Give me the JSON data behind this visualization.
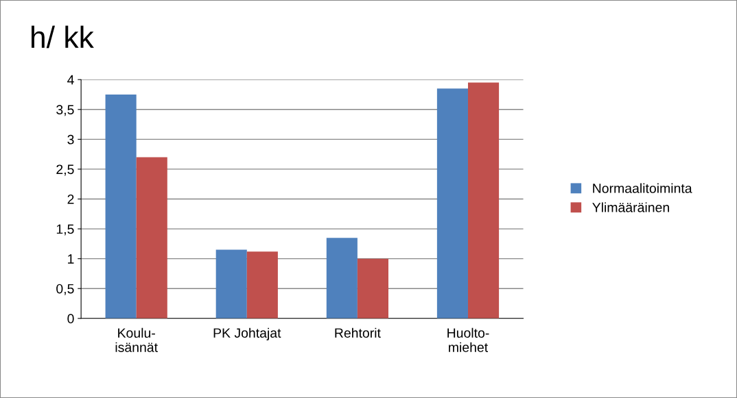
{
  "chart_data": {
    "type": "bar",
    "title": "h/ kk",
    "categories": [
      "Koulu-\nisännät",
      "PK Johtajat",
      "Rehtorit",
      "Huolto-\nmiehet"
    ],
    "series": [
      {
        "name": "Normaalitoiminta",
        "color": "#4f81bd",
        "values": [
          3.75,
          1.15,
          1.35,
          3.85
        ]
      },
      {
        "name": "Ylimääräinen",
        "color": "#c0504d",
        "values": [
          2.7,
          1.12,
          1.0,
          3.95
        ]
      }
    ],
    "ylim": [
      0,
      4
    ],
    "yticks": [
      0,
      {
        "value": 0.5,
        "label": "0,5"
      },
      1,
      {
        "value": 1.5,
        "label": "1,5"
      },
      2,
      {
        "value": 2.5,
        "label": "2,5"
      },
      3,
      {
        "value": 3.5,
        "label": "3,5"
      },
      4
    ],
    "grid": "y",
    "legend": "right"
  }
}
